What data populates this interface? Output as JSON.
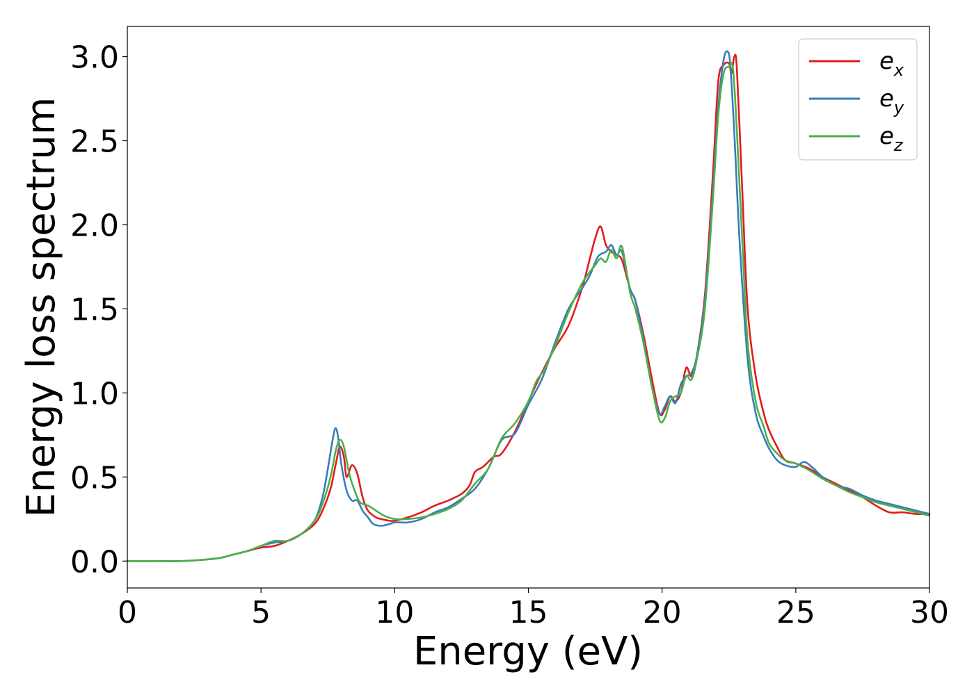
{
  "chart_data": {
    "type": "line",
    "title": "",
    "xlabel": "Energy (eV)",
    "ylabel": "Energy loss spectrum",
    "xlim": [
      0,
      30
    ],
    "ylim": [
      -0.16,
      3.18
    ],
    "xticks": [
      0,
      5,
      10,
      15,
      20,
      25,
      30
    ],
    "yticks": [
      0.0,
      0.5,
      1.0,
      1.5,
      2.0,
      2.5,
      3.0
    ],
    "xtick_labels": [
      "0",
      "5",
      "10",
      "15",
      "20",
      "25",
      "30"
    ],
    "ytick_labels": [
      "0.0",
      "0.5",
      "1.0",
      "1.5",
      "2.0",
      "2.5",
      "3.0"
    ],
    "grid": false,
    "legend_position": "top-right",
    "series": [
      {
        "name": "e",
        "subscript": "x",
        "color": "#e41a1c",
        "x": [
          0,
          1,
          2,
          3,
          3.5,
          4,
          4.5,
          5,
          5.5,
          6,
          6.5,
          7,
          7.3,
          7.6,
          7.8,
          7.95,
          8.1,
          8.2,
          8.4,
          8.6,
          8.8,
          9.0,
          9.3,
          9.5,
          9.8,
          10.0,
          10.5,
          11,
          11.5,
          12,
          12.5,
          12.8,
          13,
          13.3,
          13.7,
          14,
          14.5,
          15,
          15.5,
          16,
          16.5,
          17,
          17.3,
          17.5,
          17.7,
          17.9,
          18.1,
          18.3,
          18.5,
          18.8,
          19.0,
          19.3,
          19.6,
          19.9,
          20.1,
          20.3,
          20.5,
          20.7,
          20.9,
          21.1,
          21.3,
          21.6,
          21.9,
          22.1,
          22.3,
          22.5,
          22.6,
          22.7,
          22.8,
          23.0,
          23.2,
          23.5,
          23.8,
          24.0,
          24.3,
          24.6,
          25.0,
          25.5,
          26.0,
          26.5,
          27.0,
          27.5,
          28.0,
          28.5,
          29.0,
          29.5,
          30.0
        ],
        "values": [
          0.0,
          0.0,
          0.0,
          0.01,
          0.02,
          0.04,
          0.06,
          0.08,
          0.09,
          0.12,
          0.16,
          0.22,
          0.3,
          0.43,
          0.58,
          0.68,
          0.62,
          0.5,
          0.57,
          0.52,
          0.38,
          0.3,
          0.26,
          0.25,
          0.24,
          0.24,
          0.26,
          0.29,
          0.33,
          0.36,
          0.4,
          0.45,
          0.53,
          0.56,
          0.62,
          0.64,
          0.77,
          0.95,
          1.12,
          1.27,
          1.4,
          1.62,
          1.8,
          1.92,
          1.99,
          1.88,
          1.84,
          1.82,
          1.79,
          1.62,
          1.55,
          1.35,
          1.1,
          0.88,
          0.9,
          0.98,
          0.95,
          1.0,
          1.15,
          1.1,
          1.22,
          1.58,
          2.3,
          2.85,
          2.95,
          2.96,
          2.9,
          3.0,
          2.92,
          2.2,
          1.5,
          1.1,
          0.88,
          0.78,
          0.68,
          0.6,
          0.58,
          0.55,
          0.5,
          0.46,
          0.42,
          0.38,
          0.33,
          0.29,
          0.29,
          0.28,
          0.28
        ]
      },
      {
        "name": "e",
        "subscript": "y",
        "color": "#377eb8",
        "x": [
          0,
          1,
          2,
          3,
          3.5,
          4,
          4.5,
          5,
          5.5,
          6,
          6.5,
          7,
          7.3,
          7.5,
          7.7,
          7.8,
          7.9,
          8.0,
          8.2,
          8.4,
          8.6,
          8.8,
          9.0,
          9.2,
          9.5,
          9.8,
          10.0,
          10.5,
          11,
          11.5,
          12,
          12.5,
          13,
          13.5,
          14,
          14.5,
          15,
          15.5,
          16,
          16.5,
          17,
          17.3,
          17.6,
          17.9,
          18.1,
          18.3,
          18.5,
          18.8,
          19.0,
          19.3,
          19.6,
          19.9,
          20.1,
          20.3,
          20.5,
          20.7,
          20.9,
          21.1,
          21.3,
          21.6,
          21.9,
          22.1,
          22.3,
          22.45,
          22.55,
          22.7,
          22.9,
          23.2,
          23.5,
          23.8,
          24.0,
          24.3,
          24.6,
          25.0,
          25.3,
          25.6,
          26.0,
          26.5,
          27.0,
          27.5,
          28.0,
          28.5,
          29.0,
          29.5,
          30.0
        ],
        "values": [
          0.0,
          0.0,
          0.0,
          0.01,
          0.02,
          0.04,
          0.06,
          0.09,
          0.11,
          0.12,
          0.16,
          0.24,
          0.38,
          0.55,
          0.74,
          0.79,
          0.72,
          0.58,
          0.42,
          0.36,
          0.36,
          0.3,
          0.26,
          0.22,
          0.21,
          0.22,
          0.23,
          0.23,
          0.25,
          0.29,
          0.32,
          0.37,
          0.43,
          0.55,
          0.72,
          0.76,
          0.93,
          1.08,
          1.3,
          1.5,
          1.62,
          1.7,
          1.81,
          1.84,
          1.88,
          1.82,
          1.84,
          1.62,
          1.55,
          1.32,
          1.05,
          0.88,
          0.92,
          0.98,
          0.94,
          1.05,
          1.1,
          1.12,
          1.22,
          1.55,
          2.2,
          2.7,
          2.98,
          3.03,
          2.95,
          2.55,
          1.9,
          1.2,
          0.88,
          0.74,
          0.67,
          0.6,
          0.57,
          0.56,
          0.59,
          0.56,
          0.5,
          0.45,
          0.43,
          0.39,
          0.36,
          0.34,
          0.32,
          0.3,
          0.28
        ]
      },
      {
        "name": "e",
        "subscript": "z",
        "color": "#4daf4a",
        "x": [
          0,
          1,
          2,
          3,
          3.5,
          4,
          4.5,
          5,
          5.5,
          6,
          6.5,
          7,
          7.3,
          7.6,
          7.8,
          7.95,
          8.1,
          8.3,
          8.5,
          8.7,
          9.0,
          9.3,
          9.6,
          10.0,
          10.5,
          11,
          11.5,
          12,
          12.5,
          13,
          13.5,
          14,
          14.5,
          15,
          15.3,
          15.6,
          16,
          16.5,
          17,
          17.3,
          17.5,
          17.7,
          17.9,
          18.1,
          18.3,
          18.5,
          18.8,
          19.0,
          19.3,
          19.6,
          19.9,
          20.1,
          20.3,
          20.5,
          20.7,
          20.9,
          21.1,
          21.3,
          21.6,
          21.9,
          22.1,
          22.3,
          22.5,
          22.65,
          22.8,
          23.0,
          23.2,
          23.5,
          23.8,
          24.0,
          24.3,
          24.6,
          25.0,
          25.5,
          26.0,
          26.5,
          27.0,
          27.5,
          28.0,
          28.5,
          29.0,
          29.5,
          30.0
        ],
        "values": [
          0.0,
          0.0,
          0.0,
          0.01,
          0.02,
          0.04,
          0.06,
          0.09,
          0.12,
          0.12,
          0.16,
          0.24,
          0.34,
          0.5,
          0.66,
          0.72,
          0.68,
          0.52,
          0.42,
          0.35,
          0.33,
          0.3,
          0.27,
          0.25,
          0.25,
          0.26,
          0.28,
          0.31,
          0.36,
          0.46,
          0.55,
          0.73,
          0.82,
          0.95,
          1.07,
          1.14,
          1.28,
          1.48,
          1.65,
          1.72,
          1.76,
          1.8,
          1.78,
          1.85,
          1.8,
          1.87,
          1.6,
          1.5,
          1.3,
          1.05,
          0.84,
          0.85,
          0.95,
          0.98,
          1.0,
          1.1,
          1.08,
          1.2,
          1.5,
          2.15,
          2.65,
          2.9,
          2.94,
          2.93,
          2.55,
          1.9,
          1.3,
          0.95,
          0.8,
          0.7,
          0.64,
          0.6,
          0.58,
          0.54,
          0.49,
          0.45,
          0.41,
          0.38,
          0.35,
          0.33,
          0.31,
          0.29,
          0.27
        ]
      }
    ]
  }
}
